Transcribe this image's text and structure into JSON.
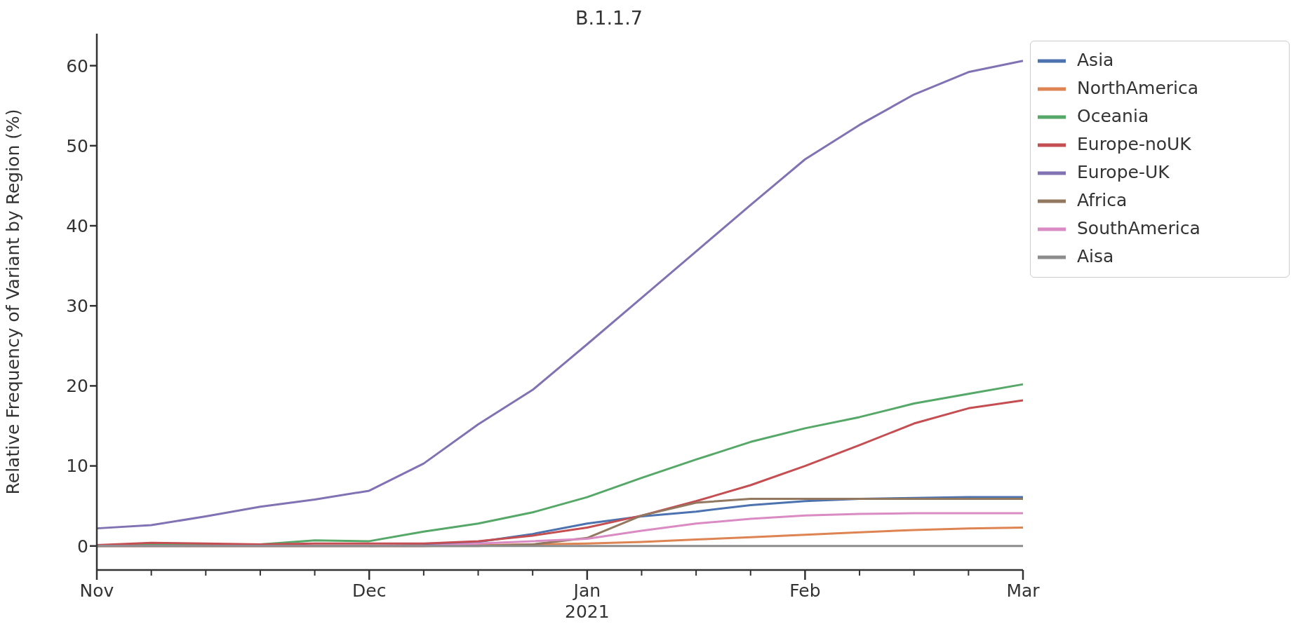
{
  "chart_data": {
    "type": "line",
    "title": "B.1.1.7",
    "ylabel": "Relative Frequency of Variant by Region (%)",
    "categories": [
      "Nov",
      null,
      null,
      null,
      null,
      "Dec",
      null,
      null,
      null,
      "Jan\n2021",
      null,
      null,
      null,
      "Feb",
      null,
      null,
      null,
      "Mar"
    ],
    "ylim": [
      -3,
      64
    ],
    "yticks": [
      0,
      10,
      20,
      30,
      40,
      50,
      60
    ],
    "grid": false,
    "legend": "top right",
    "marker": "none",
    "line_style": "solid",
    "series": [
      {
        "name": "Asia",
        "color": "#4c72b0",
        "values": [
          null,
          null,
          null,
          null,
          null,
          0,
          0.1,
          0.5,
          1.5,
          2.8,
          3.7,
          4.3,
          5.1,
          5.6,
          5.9,
          6.0,
          6.1,
          6.1
        ]
      },
      {
        "name": "NorthAmerica",
        "color": "#dd8452",
        "values": [
          0,
          0,
          0,
          0,
          0,
          0,
          0,
          0.1,
          0.2,
          0.3,
          0.5,
          0.8,
          1.1,
          1.4,
          1.7,
          2.0,
          2.2,
          2.3
        ]
      },
      {
        "name": "Oceania",
        "color": "#55a868",
        "values": [
          0,
          0.2,
          0.2,
          0.2,
          0.7,
          0.6,
          1.8,
          2.8,
          4.2,
          6.1,
          8.5,
          10.8,
          13.0,
          14.7,
          16.1,
          17.8,
          19.0,
          20.2
        ]
      },
      {
        "name": "Europe-noUK",
        "color": "#c44e52",
        "values": [
          0.1,
          0.4,
          0.3,
          0.2,
          0.3,
          0.3,
          0.3,
          0.6,
          1.3,
          2.3,
          3.8,
          5.6,
          7.6,
          10.0,
          12.6,
          15.3,
          17.2,
          18.2
        ]
      },
      {
        "name": "Europe-UK",
        "color": "#8172b3",
        "values": [
          2.2,
          2.6,
          3.7,
          4.9,
          5.8,
          6.9,
          10.3,
          15.2,
          19.5,
          25.2,
          31.0,
          36.8,
          42.6,
          48.3,
          52.6,
          56.4,
          59.2,
          60.6
        ]
      },
      {
        "name": "Africa",
        "color": "#937860",
        "values": [
          0,
          0,
          0,
          0,
          0,
          0,
          0,
          0,
          0.2,
          1.0,
          3.8,
          5.4,
          5.9,
          5.9,
          5.9,
          5.9,
          5.9,
          5.9
        ]
      },
      {
        "name": "SouthAmerica",
        "color": "#da8bc3",
        "values": [
          0,
          0,
          0,
          0,
          0,
          0,
          0,
          0.3,
          0.6,
          0.9,
          1.9,
          2.8,
          3.4,
          3.8,
          4.0,
          4.1,
          4.1,
          4.1
        ]
      },
      {
        "name": "Aisa",
        "color": "#8c8c8c",
        "values": [
          0,
          0,
          0,
          0,
          0,
          0,
          0,
          0,
          0,
          0,
          0,
          0,
          0,
          0,
          0,
          0,
          0,
          0
        ]
      }
    ]
  }
}
